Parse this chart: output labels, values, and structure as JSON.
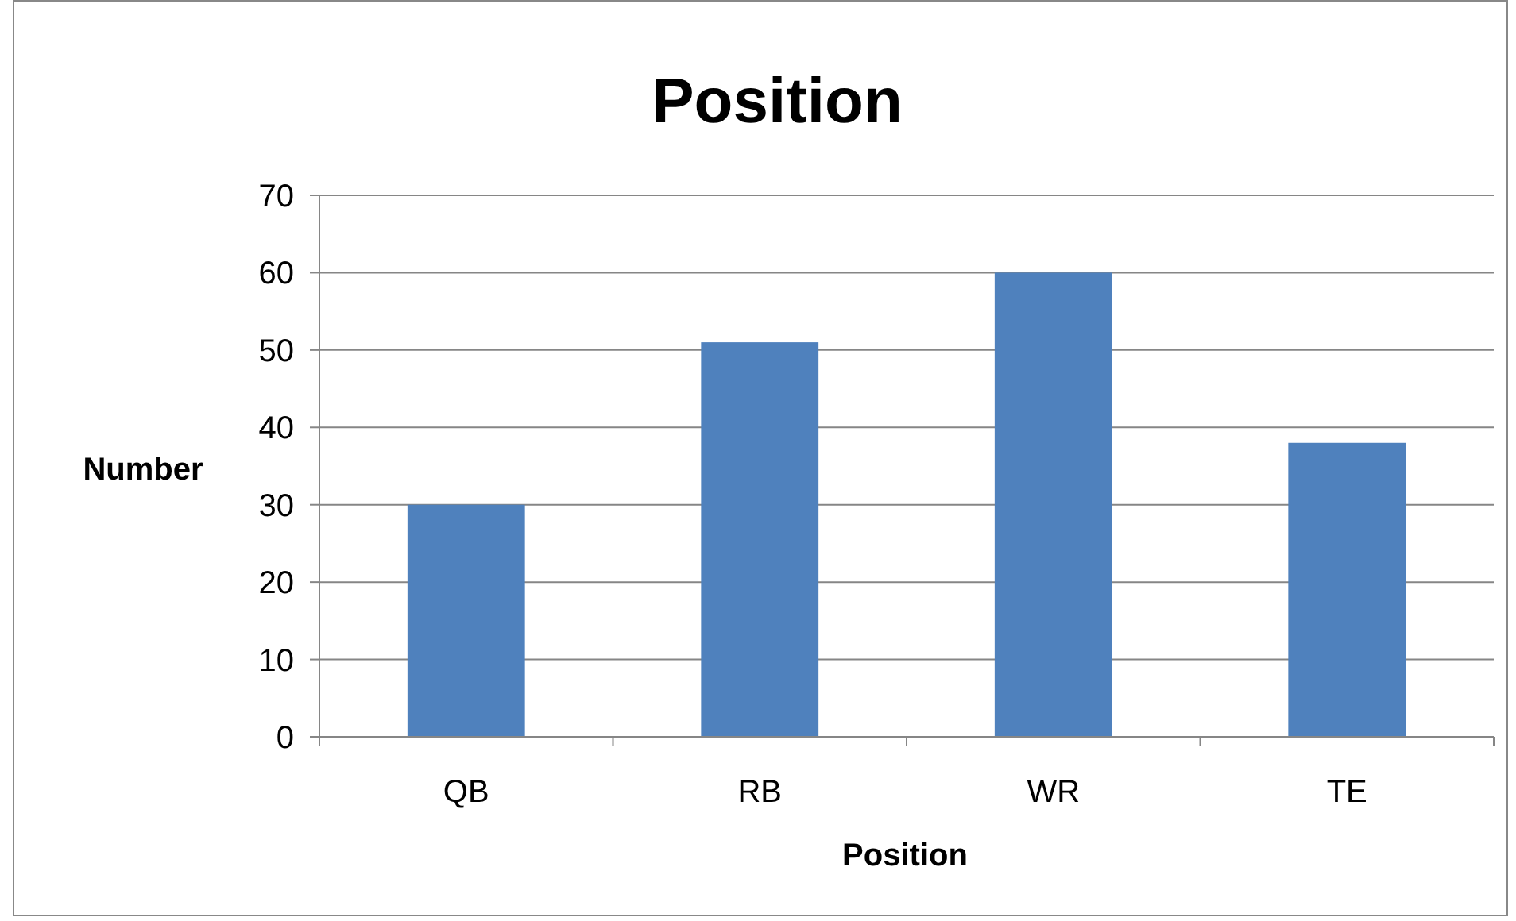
{
  "chart_data": {
    "type": "bar",
    "title": "Position",
    "xlabel": "Position",
    "ylabel": "Number",
    "categories": [
      "QB",
      "RB",
      "WR",
      "TE"
    ],
    "values": [
      30,
      51,
      60,
      38
    ],
    "color": "#4f81bd",
    "ylim": [
      0,
      70
    ],
    "yticks": [
      0,
      10,
      20,
      30,
      40,
      50,
      60,
      70
    ],
    "grid": "y"
  }
}
